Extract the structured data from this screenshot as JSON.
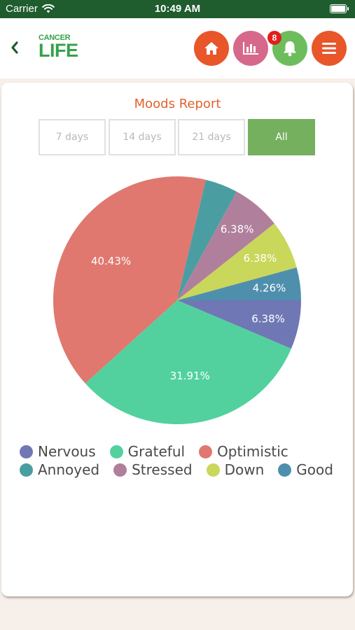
{
  "status_bar": {
    "carrier": "Carrier",
    "time": "10:49 AM"
  },
  "header": {
    "logo_line1": "CANCER",
    "logo_line2": "LIFE",
    "notification_count": "8",
    "icons": [
      "chevron-left-icon",
      "home-icon",
      "bar-chart-icon",
      "bell-icon",
      "menu-icon"
    ]
  },
  "report": {
    "title": "Moods Report",
    "tabs": [
      {
        "label": "7 days",
        "active": false
      },
      {
        "label": "14 days",
        "active": false
      },
      {
        "label": "21 days",
        "active": false
      },
      {
        "label": "All",
        "active": true
      }
    ]
  },
  "chart_data": {
    "type": "pie",
    "title": "",
    "start_angle_deg": 0,
    "direction": "clockwise",
    "slices": [
      {
        "name": "Nervous",
        "value": 6.38,
        "label": "6.38%",
        "color": "#6f78b4"
      },
      {
        "name": "Grateful",
        "value": 31.91,
        "label": "31.91%",
        "color": "#52d19f"
      },
      {
        "name": "Optimistic",
        "value": 40.43,
        "label": "40.43%",
        "color": "#e07870"
      },
      {
        "name": "Annoyed",
        "value": 4.26,
        "label": "",
        "color": "#4a9ea2"
      },
      {
        "name": "Stressed",
        "value": 6.38,
        "label": "6.38%",
        "color": "#b07f9b"
      },
      {
        "name": "Down",
        "value": 6.38,
        "label": "6.38%",
        "color": "#c9d75a"
      },
      {
        "name": "Good",
        "value": 4.26,
        "label": "4.26%",
        "color": "#4f8fae"
      }
    ],
    "legend": [
      [
        "Nervous",
        "Grateful",
        "Optimistic"
      ],
      [
        "Annoyed",
        "Stressed",
        "Down",
        "Good"
      ]
    ]
  },
  "colors": {
    "status_bar": "#1f5c2e",
    "accent_orange": "#e0622d",
    "tab_active": "#75b05f",
    "badge": "#e0201c"
  }
}
